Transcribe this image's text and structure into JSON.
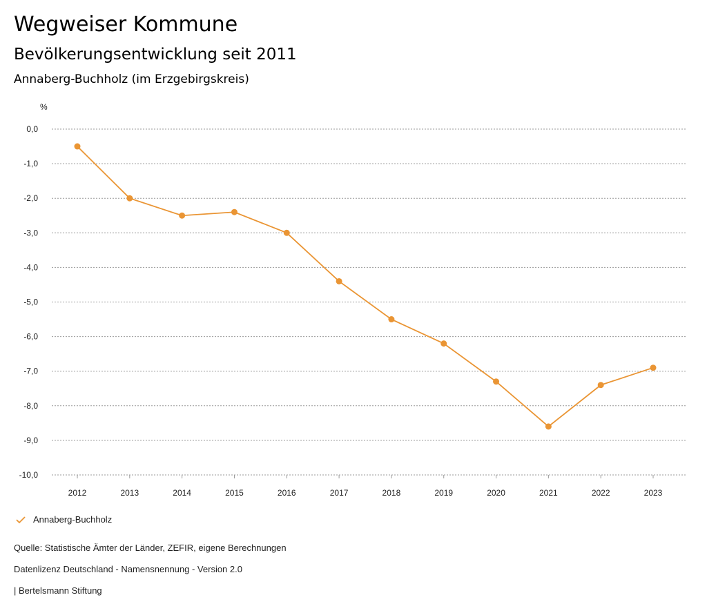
{
  "header": {
    "title": "Wegweiser Kommune",
    "subtitle": "Bevölkerungsentwicklung seit 2011",
    "region": "Annaberg-Buchholz (im Erzgebirgskreis)"
  },
  "chart_data": {
    "type": "line",
    "ylabel": "%",
    "ylim": [
      -10,
      0
    ],
    "yticks": [
      0,
      -1,
      -2,
      -3,
      -4,
      -5,
      -6,
      -7,
      -8,
      -9,
      -10
    ],
    "ytick_labels": [
      "0,0",
      "-1,0",
      "-2,0",
      "-3,0",
      "-4,0",
      "-5,0",
      "-6,0",
      "-7,0",
      "-8,0",
      "-9,0",
      "-10,0"
    ],
    "categories": [
      "2012",
      "2013",
      "2014",
      "2015",
      "2016",
      "2017",
      "2018",
      "2019",
      "2020",
      "2021",
      "2022",
      "2023"
    ],
    "series": [
      {
        "name": "Annaberg-Buchholz",
        "color": "#ea9534",
        "values": [
          -0.5,
          -2.0,
          -2.5,
          -2.4,
          -3.0,
          -4.4,
          -5.5,
          -6.2,
          -7.3,
          -8.6,
          -7.4,
          -6.9
        ]
      }
    ],
    "grid": true,
    "legend": "bottom-left"
  },
  "footer": {
    "source": "Quelle: Statistische Ämter der Länder, ZEFIR, eigene Berechnungen",
    "license": "Datenlizenz Deutschland - Namensnennung - Version 2.0",
    "brand": "| Bertelsmann Stiftung"
  }
}
